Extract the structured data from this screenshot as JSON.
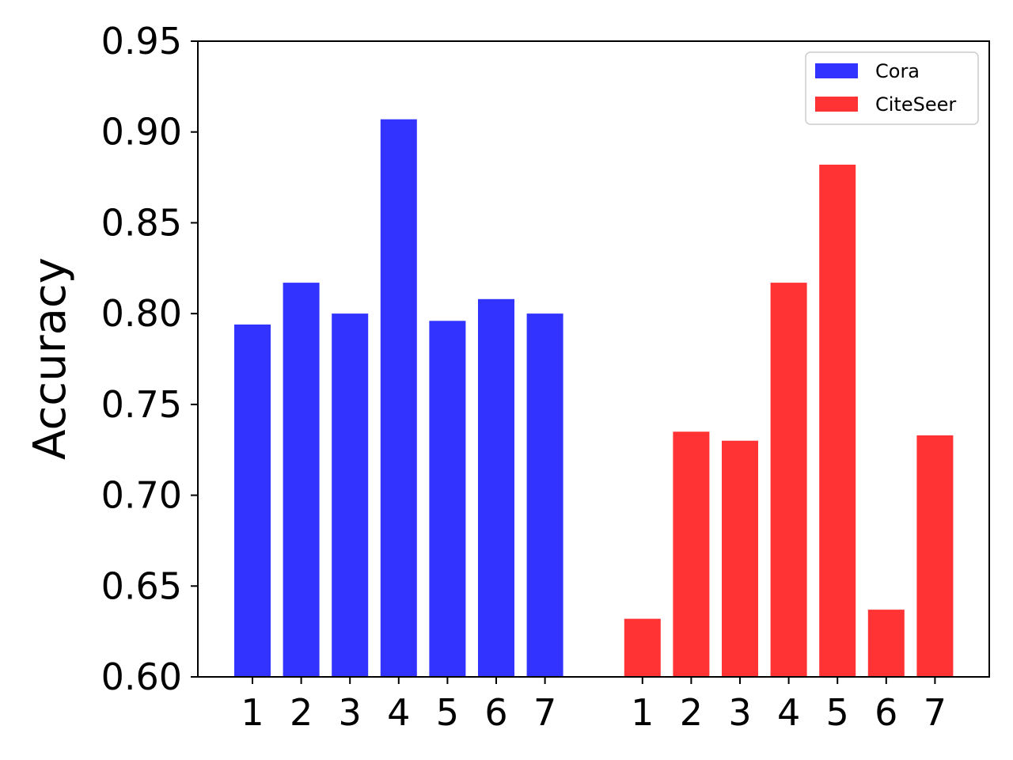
{
  "chart_data": {
    "type": "bar",
    "title": "",
    "xlabel": "",
    "ylabel": "Accuracy",
    "ylim": [
      0.6,
      0.95
    ],
    "yticks": [
      "0.60",
      "0.65",
      "0.70",
      "0.75",
      "0.80",
      "0.85",
      "0.90",
      "0.95"
    ],
    "grid": false,
    "legend_position": "top-right",
    "series": [
      {
        "name": "Cora",
        "color": "#3333ff",
        "categories": [
          "1",
          "2",
          "3",
          "4",
          "5",
          "6",
          "7"
        ],
        "values": [
          0.794,
          0.817,
          0.8,
          0.907,
          0.796,
          0.808,
          0.8
        ]
      },
      {
        "name": "CiteSeer",
        "color": "#ff3333",
        "categories": [
          "1",
          "2",
          "3",
          "4",
          "5",
          "6",
          "7"
        ],
        "values": [
          0.632,
          0.735,
          0.73,
          0.817,
          0.882,
          0.637,
          0.733
        ]
      }
    ]
  }
}
